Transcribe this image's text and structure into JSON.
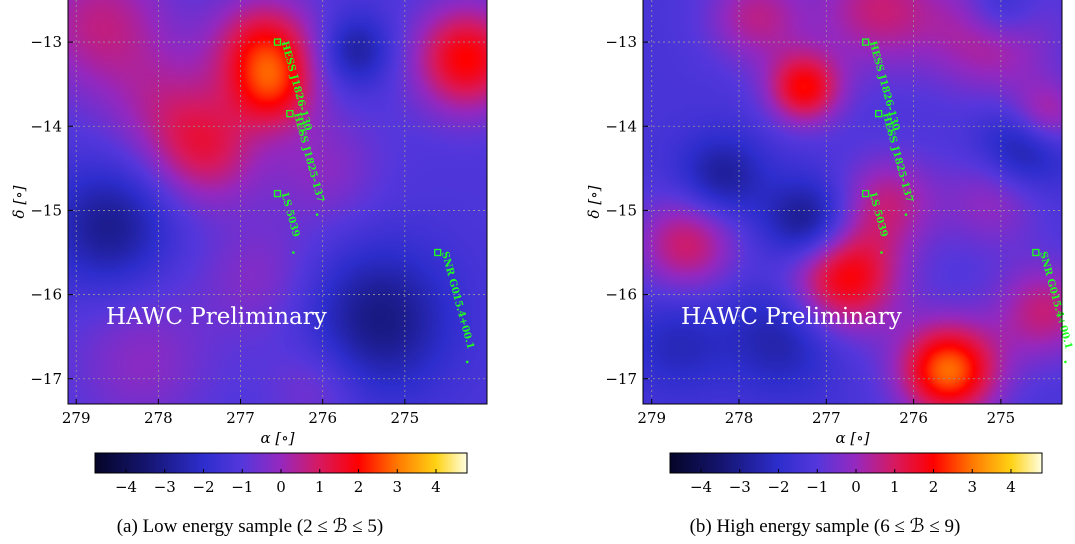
{
  "chart_data": [
    {
      "type": "heatmap",
      "caption": "(a) Low energy sample (2 ≤ ℬ ≤ 5)",
      "watermark": "HAWC Preliminary",
      "xlabel": "α [∘]",
      "ylabel": "δ [∘]",
      "xlim": [
        279.1,
        274.0
      ],
      "ylim": [
        -17.3,
        -12.5
      ],
      "x_ticks": [
        279,
        278,
        277,
        276,
        275
      ],
      "y_ticks": [
        -13,
        -14,
        -15,
        -16,
        -17
      ],
      "grid": true,
      "colorbar": {
        "range": [
          -4.8,
          4.8
        ],
        "ticks": [
          -4,
          -3,
          -2,
          -1,
          0,
          1,
          2,
          3,
          4
        ]
      },
      "background_value": -1.2,
      "blobs": [
        {
          "x": 276.7,
          "y": -13.1,
          "sigma": 0.45,
          "amp": 3.0
        },
        {
          "x": 276.6,
          "y": -13.6,
          "sigma": 0.35,
          "amp": 1.8
        },
        {
          "x": 274.25,
          "y": -13.2,
          "sigma": 0.45,
          "amp": 3.2
        },
        {
          "x": 275.6,
          "y": -13.1,
          "sigma": 0.3,
          "amp": -1.6
        },
        {
          "x": 277.4,
          "y": -14.3,
          "sigma": 0.45,
          "amp": 2.0
        },
        {
          "x": 277.9,
          "y": -13.8,
          "sigma": 0.5,
          "amp": 1.2
        },
        {
          "x": 278.7,
          "y": -12.8,
          "sigma": 0.6,
          "amp": 1.8
        },
        {
          "x": 276.0,
          "y": -14.5,
          "sigma": 0.5,
          "amp": 1.0
        },
        {
          "x": 278.6,
          "y": -15.2,
          "sigma": 0.5,
          "amp": -1.8
        },
        {
          "x": 275.3,
          "y": -16.3,
          "sigma": 0.6,
          "amp": -2.0
        },
        {
          "x": 276.8,
          "y": -15.8,
          "sigma": 0.5,
          "amp": 0.9
        },
        {
          "x": 278.2,
          "y": -16.8,
          "sigma": 0.6,
          "amp": 1.0
        },
        {
          "x": 276.1,
          "y": -17.1,
          "sigma": 0.4,
          "amp": 0.8
        }
      ],
      "sources": [
        {
          "name": "HESS J1826-130",
          "x": 276.55,
          "y": -13.0,
          "end_y": -14.05
        },
        {
          "name": "HESS J1825-137",
          "x": 276.4,
          "y": -13.85,
          "end_y": -15.05
        },
        {
          "name": "LS 5039",
          "x": 276.55,
          "y": -14.8,
          "end_y": -15.5
        },
        {
          "name": "SNR G015.4+00.1",
          "x": 274.6,
          "y": -15.5,
          "end_y": -16.8
        }
      ]
    },
    {
      "type": "heatmap",
      "caption": "(b) High energy sample (6 ≤ ℬ ≤ 9)",
      "watermark": "HAWC Preliminary",
      "xlabel": "α [∘]",
      "ylabel": "δ [∘]",
      "xlim": [
        279.1,
        274.3
      ],
      "ylim": [
        -17.3,
        -12.5
      ],
      "x_ticks": [
        279,
        278,
        277,
        276,
        275
      ],
      "y_ticks": [
        -13,
        -14,
        -15,
        -16,
        -17
      ],
      "grid": true,
      "colorbar": {
        "range": [
          -4.8,
          4.8
        ],
        "ticks": [
          -4,
          -3,
          -2,
          -1,
          0,
          1,
          2,
          3,
          4
        ]
      },
      "background_value": -1.3,
      "blobs": [
        {
          "x": 277.25,
          "y": -13.55,
          "sigma": 0.3,
          "amp": 3.2
        },
        {
          "x": 277.8,
          "y": -12.7,
          "sigma": 0.4,
          "amp": 1.8
        },
        {
          "x": 276.4,
          "y": -12.6,
          "sigma": 0.5,
          "amp": 2.0
        },
        {
          "x": 275.1,
          "y": -12.9,
          "sigma": 0.5,
          "amp": 2.0
        },
        {
          "x": 274.5,
          "y": -13.9,
          "sigma": 0.3,
          "amp": 2.2
        },
        {
          "x": 278.6,
          "y": -15.4,
          "sigma": 0.4,
          "amp": 2.2
        },
        {
          "x": 276.3,
          "y": -14.9,
          "sigma": 0.4,
          "amp": 1.8
        },
        {
          "x": 275.1,
          "y": -14.9,
          "sigma": 0.4,
          "amp": 1.2
        },
        {
          "x": 276.8,
          "y": -15.8,
          "sigma": 0.45,
          "amp": 3.4
        },
        {
          "x": 275.6,
          "y": -16.9,
          "sigma": 0.4,
          "amp": 4.2
        },
        {
          "x": 274.5,
          "y": -16.2,
          "sigma": 0.4,
          "amp": 2.0
        },
        {
          "x": 277.2,
          "y": -15.15,
          "sigma": 0.35,
          "amp": -2.2
        },
        {
          "x": 278.2,
          "y": -14.6,
          "sigma": 0.35,
          "amp": -1.6
        },
        {
          "x": 274.7,
          "y": -14.2,
          "sigma": 0.35,
          "amp": -2.0
        },
        {
          "x": 277.5,
          "y": -16.5,
          "sigma": 0.45,
          "amp": -1.4
        },
        {
          "x": 278.7,
          "y": -16.6,
          "sigma": 0.4,
          "amp": -1.0
        },
        {
          "x": 275.0,
          "y": -12.6,
          "sigma": 0.3,
          "amp": -1.6
        }
      ],
      "sources": [
        {
          "name": "HESS J1826-130",
          "x": 276.55,
          "y": -13.0,
          "end_y": -14.05
        },
        {
          "name": "HESS J1825-137",
          "x": 276.4,
          "y": -13.85,
          "end_y": -15.05
        },
        {
          "name": "LS 5039",
          "x": 276.55,
          "y": -14.8,
          "end_y": -15.5
        },
        {
          "name": "SNR G015.4+00.1",
          "x": 274.6,
          "y": -15.5,
          "end_y": -16.8
        }
      ]
    }
  ]
}
